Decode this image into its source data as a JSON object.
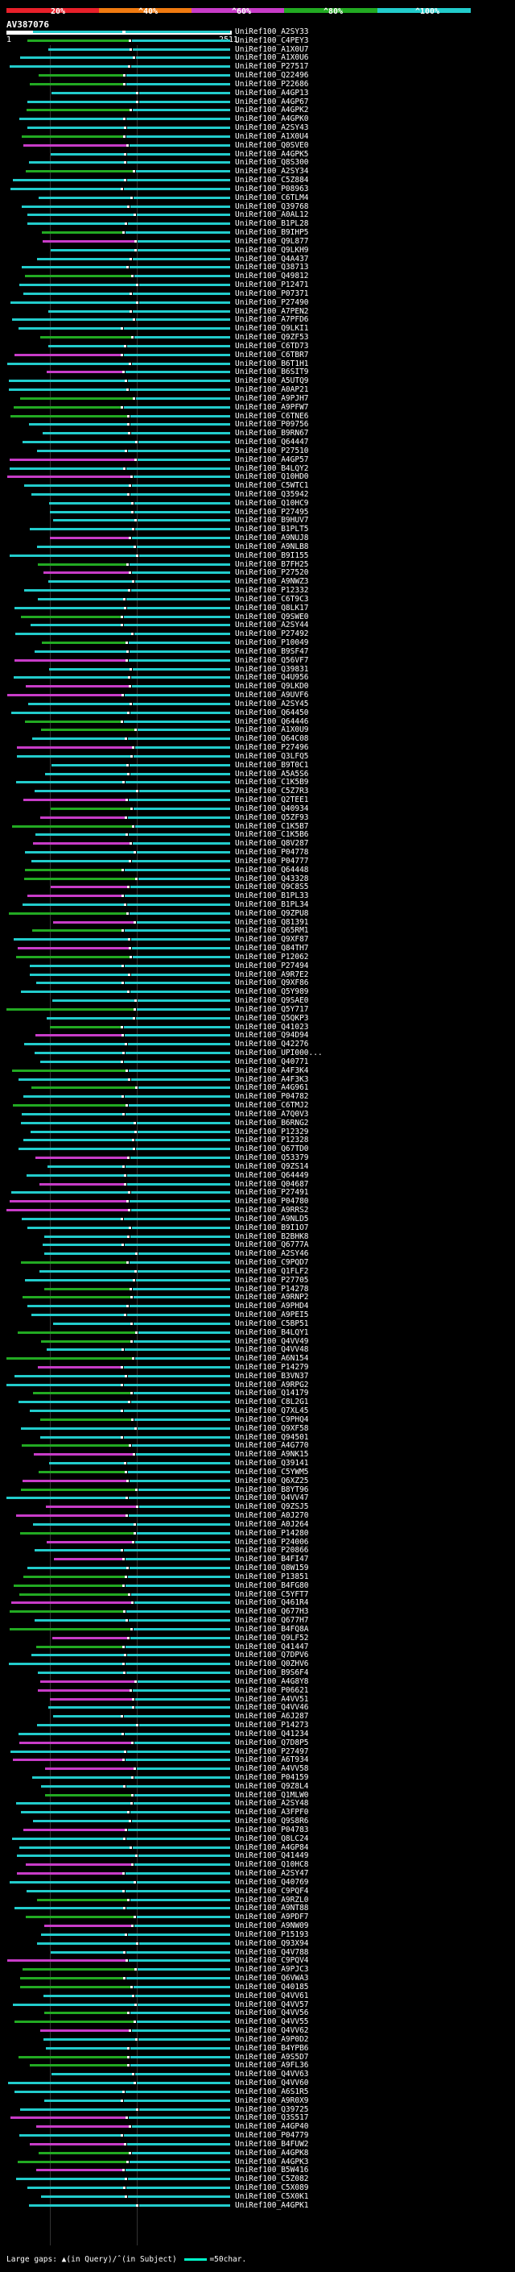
{
  "legend": {
    "ticks": [
      "20%",
      "^40%",
      "^60%",
      "^80%",
      "^100%"
    ],
    "colors": {
      "red": "#e8202a",
      "orange": "#f07a10",
      "magenta": "#c83cc8",
      "green": "#22aa22",
      "cyan": "#22cccc"
    }
  },
  "query": {
    "title": "AV387076",
    "start": "1",
    "end": "2511"
  },
  "hits": [
    "UniRef100_A2SY33",
    "UniRef100_C4PEY3",
    "UniRef100_A1X0U7",
    "UniRef100_A1X0U6",
    "UniRef100_P27517",
    "UniRef100_Q22496",
    "UniRef100_P22686",
    "UniRef100_A4GP13",
    "UniRef100_A4GP67",
    "UniRef100_A4GPK2",
    "UniRef100_A4GPK0",
    "UniRef100_A2SY43",
    "UniRef100_A1X0U4",
    "UniRef100_Q0SVE0",
    "UniRef100_A4GPK5",
    "UniRef100_Q8S300",
    "UniRef100_A2SY34",
    "UniRef100_C5Z884",
    "UniRef100_P08963",
    "UniRef100_C6TLM4",
    "UniRef100_Q39768",
    "UniRef100_A0AL12",
    "UniRef100_B1PL28",
    "UniRef100_B9IHP5",
    "UniRef100_Q9L877",
    "UniRef100_Q9LKH9",
    "UniRef100_Q4A437",
    "UniRef100_Q38713",
    "UniRef100_Q49812",
    "UniRef100_P12471",
    "UniRef100_P07371",
    "UniRef100_P27490",
    "UniRef100_A7PEN2",
    "UniRef100_A7PFD6",
    "UniRef100_Q9LKI1",
    "UniRef100_Q9ZF53",
    "UniRef100_C6TD73",
    "UniRef100_C6TBR7",
    "UniRef100_B6T1H1",
    "UniRef100_B6SIT9",
    "UniRef100_A5UTQ9",
    "UniRef100_A0AP21",
    "UniRef100_A9PJH7",
    "UniRef100_A9PFW7",
    "UniRef100_C6TNE6",
    "UniRef100_P09756",
    "UniRef100_B9RN67",
    "UniRef100_Q64447",
    "UniRef100_P27510",
    "UniRef100_A4GP57",
    "UniRef100_B4LQY2",
    "UniRef100_Q10HD0",
    "UniRef100_C5WTC1",
    "UniRef100_Q35942",
    "UniRef100_Q10HC9",
    "UniRef100_P27495",
    "UniRef100_B9HUV7",
    "UniRef100_B1PLT5",
    "UniRef100_A9NUJ8",
    "UniRef100_A9NLB8",
    "UniRef100_B9I155",
    "UniRef100_B7FH25",
    "UniRef100_P27520",
    "UniRef100_A9NWZ3",
    "UniRef100_P12332",
    "UniRef100_C6T9C3",
    "UniRef100_Q8LK17",
    "UniRef100_Q9SWE0",
    "UniRef100_A2SY44",
    "UniRef100_P27492",
    "UniRef100_P10049",
    "UniRef100_B9SF47",
    "UniRef100_Q56VF7",
    "UniRef100_Q39831",
    "UniRef100_Q4U956",
    "UniRef100_Q9LKD0",
    "UniRef100_A9UVF6",
    "UniRef100_A2SY45",
    "UniRef100_Q64450",
    "UniRef100_Q64446",
    "UniRef100_A1X0U9",
    "UniRef100_Q64C08",
    "UniRef100_P27496",
    "UniRef100_Q3LFQ5",
    "UniRef100_B9T0C1",
    "UniRef100_A5A5S6",
    "UniRef100_C1K5B9",
    "UniRef100_C5Z7R3",
    "UniRef100_Q2TEE1",
    "UniRef100_Q40934",
    "UniRef100_Q5ZF93",
    "UniRef100_C1K5B7",
    "UniRef100_C1K5B6",
    "UniRef100_Q8V287",
    "UniRef100_P04778",
    "UniRef100_P04777",
    "UniRef100_Q64448",
    "UniRef100_Q43328",
    "UniRef100_Q9C8S5",
    "UniRef100_B1PL33",
    "UniRef100_B1PL34",
    "UniRef100_Q9ZPU8",
    "UniRef100_Q81391",
    "UniRef100_Q65RM1",
    "UniRef100_Q9XF87",
    "UniRef100_Q84TH7",
    "UniRef100_P12062",
    "UniRef100_P27494",
    "UniRef100_A9R7E2",
    "UniRef100_Q9XF86",
    "UniRef100_Q5Y989",
    "UniRef100_Q9SAE0",
    "UniRef100_Q5Y717",
    "UniRef100_Q5QKP3",
    "UniRef100_Q41023",
    "UniRef100_Q94D94",
    "UniRef100_Q42276",
    "UniRef100_UPI000...",
    "UniRef100_Q40771",
    "UniRef100_A4F3K4",
    "UniRef100_A4F3K3",
    "UniRef100_A4G961",
    "UniRef100_P04782",
    "UniRef100_C6TMJ2",
    "UniRef100_A7Q0V3",
    "UniRef100_B6RNG2",
    "UniRef100_P12329",
    "UniRef100_P12328",
    "UniRef100_Q67TD0",
    "UniRef100_Q53379",
    "UniRef100_Q9ZS14",
    "UniRef100_Q64449",
    "UniRef100_Q04687",
    "UniRef100_P27491",
    "UniRef100_P04780",
    "UniRef100_A9RRS2",
    "UniRef100_A9NLD5",
    "UniRef100_B9I1O7",
    "UniRef100_B2BHK8",
    "UniRef100_Q6777A",
    "UniRef100_A2SY46",
    "UniRef100_C9PQD7",
    "UniRef100_Q1FLF2",
    "UniRef100_P27705",
    "UniRef100_P14278",
    "UniRef100_A9RNP2",
    "UniRef100_A9PHD4",
    "UniRef100_A9PEI5",
    "UniRef100_C5BP51",
    "UniRef100_B4LQY1",
    "UniRef100_Q4VV49",
    "UniRef100_Q4VV48",
    "UniRef100_A6N154",
    "UniRef100_P14279",
    "UniRef100_B3VN37",
    "UniRef100_A9RPG2",
    "UniRef100_Q14179",
    "UniRef100_C8L2G1",
    "UniRef100_Q7XL45",
    "UniRef100_C9PHQ4",
    "UniRef100_Q9XF58",
    "UniRef100_Q94501",
    "UniRef100_A4G770",
    "UniRef100_A9NK15",
    "UniRef100_Q39141",
    "UniRef100_C5YWM5",
    "UniRef100_Q6XZ25",
    "UniRef100_B8YT96",
    "UniRef100_Q4VV47",
    "UniRef100_Q9ZSJ5",
    "UniRef100_A0J270",
    "UniRef100_A0J264",
    "UniRef100_P14280",
    "UniRef100_P24006",
    "UniRef100_P20866",
    "UniRef100_B4FI47",
    "UniRef100_Q8W159",
    "UniRef100_P13851",
    "UniRef100_B4FG80",
    "UniRef100_C5YFT7",
    "UniRef100_Q461R4",
    "UniRef100_Q677H3",
    "UniRef100_Q677H7",
    "UniRef100_B4FQ8A",
    "UniRef100_Q9LF52",
    "UniRef100_Q41447",
    "UniRef100_Q7DPV6",
    "UniRef100_Q0ZHV6",
    "UniRef100_B9S6F4",
    "UniRef100_A4G8Y8",
    "UniRef100_P06621",
    "UniRef100_A4VV51",
    "UniRef100_Q4VV46",
    "UniRef100_A6J287",
    "UniRef100_P14273",
    "UniRef100_Q41234",
    "UniRef100_Q7D8P5",
    "UniRef100_P27497",
    "UniRef100_A6T934",
    "UniRef100_A4VV58",
    "UniRef100_P04159",
    "UniRef100_Q9Z8L4",
    "UniRef100_Q1MLW0",
    "UniRef100_A2SY48",
    "UniRef100_A3FPF0",
    "UniRef100_Q9S8R6",
    "UniRef100_P04783",
    "UniRef100_Q8LC24",
    "UniRef100_A4GP84",
    "UniRef100_Q41449",
    "UniRef100_Q10HC8",
    "UniRef100_A2SY47",
    "UniRef100_Q40769",
    "UniRef100_C9PQF4",
    "UniRef100_A9RZL0",
    "UniRef100_A9NT88",
    "UniRef100_A9PDF7",
    "UniRef100_A9NW09",
    "UniRef100_P15193",
    "UniRef100_Q93X94",
    "UniRef100_Q4V788",
    "UniRef100_C9PQV4",
    "UniRef100_A9PJC3",
    "UniRef100_Q6VWA3",
    "UniRef100_Q40185",
    "UniRef100_Q4VV61",
    "UniRef100_Q4VV57",
    "UniRef100_Q4VV56",
    "UniRef100_Q4VV55",
    "UniRef100_Q4VV62",
    "UniRef100_A9P0D2",
    "UniRef100_B4YPB6",
    "UniRef100_A9S5D7",
    "UniRef100_A9FL36",
    "UniRef100_Q4VV63",
    "UniRef100_Q4VV60",
    "UniRef100_A6S1R5",
    "UniRef100_A9R0X9",
    "UniRef100_Q39725",
    "UniRef100_Q3S517",
    "UniRef100_A4GP40",
    "UniRef100_P04779",
    "UniRef100_B4FUW2",
    "UniRef100_A4GPK8",
    "UniRef100_A4GPK3",
    "UniRef100_B5W416",
    "UniRef100_C5Z082",
    "UniRef100_C5X089",
    "UniRef100_C5X0K1",
    "UniRef100_A4GPK1"
  ],
  "footer": {
    "large_gaps_label": "Large gaps:",
    "in_query_text": "(in Query)",
    "separator": "/",
    "in_subject_text": "(in Subject)",
    "scale_text": "=50char."
  }
}
